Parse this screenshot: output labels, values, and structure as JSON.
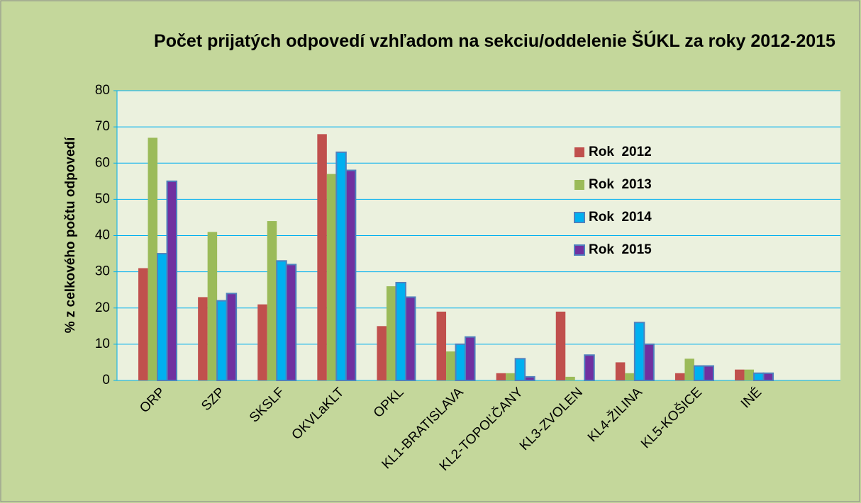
{
  "chart_data": {
    "type": "bar",
    "title": "Počet prijatých odpovedí vzhľadom na sekciu/oddelenie ŠÚKL za roky 2012-2015",
    "y_label": "% z celkového počtu odpovedí",
    "categories": [
      "ORP",
      "SZP",
      "SKSLF",
      "OKVLaKLT",
      "OPKL",
      "KL1-BRATISLAVA",
      "KL2-TOPOĽČANY",
      "KL3-ZVOLEN",
      "KL4-ŽILINA",
      "KL5-KOŠICE",
      "INÉ"
    ],
    "series": [
      {
        "name": "Rok  2012",
        "color": "#c0504d",
        "legend_text_color": "#c00000",
        "values": [
          31,
          23,
          21,
          68,
          15,
          19,
          2,
          19,
          5,
          2,
          3
        ]
      },
      {
        "name": "Rok  2013",
        "color": "#9bbb59",
        "legend_text_color": "#77933c",
        "values": [
          67,
          41,
          44,
          57,
          26,
          8,
          2,
          1,
          2,
          6,
          3
        ]
      },
      {
        "name": "Rok  2014",
        "color": "#00b0f0",
        "border": "#4f81bd",
        "legend_text_color": "#4f9bd9",
        "values": [
          35,
          22,
          33,
          63,
          27,
          10,
          6,
          0,
          16,
          4,
          2
        ]
      },
      {
        "name": "Rok  2015",
        "color": "#7030a0",
        "border": "#4f81bd",
        "legend_text_color": "#7030a0",
        "values": [
          55,
          24,
          32,
          58,
          23,
          12,
          1,
          7,
          10,
          4,
          2
        ]
      }
    ],
    "ylim": [
      0,
      80
    ],
    "yticks": [
      0,
      10,
      20,
      30,
      40,
      50,
      60,
      70,
      80
    ],
    "grid": true,
    "grid_color": "#00b0f0"
  }
}
